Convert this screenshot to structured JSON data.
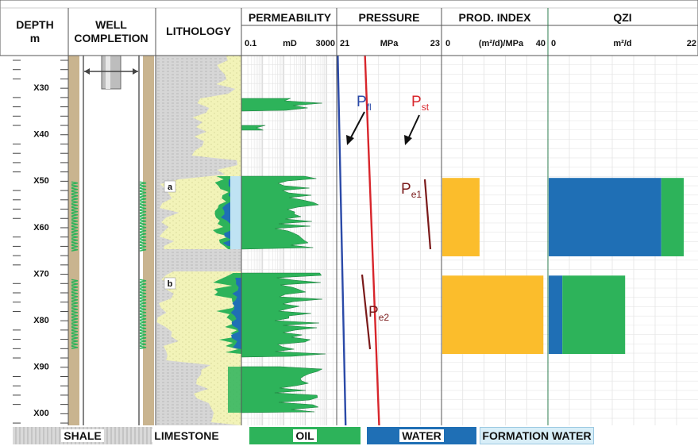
{
  "headers": {
    "depth": [
      "DEPTH",
      "m"
    ],
    "well": [
      "WELL",
      "COMPLETION"
    ],
    "lithology": "LITHOLOGY",
    "permeability": {
      "title": "PERMEABILITY",
      "min": "0.1",
      "unit": "mD",
      "max": "3000"
    },
    "pressure": {
      "title": "PRESSURE",
      "min": "21",
      "unit": "MPa",
      "max": "23"
    },
    "prod_index": {
      "title": "PROD. INDEX",
      "min": "0",
      "unit": "(m²/d)/MPa",
      "max": "40"
    },
    "qzi": {
      "title": "QZI",
      "min": "0",
      "unit": "m²/d",
      "max": "22"
    }
  },
  "depth_ticks": [
    "X30",
    "X40",
    "X50",
    "X60",
    "X70",
    "X80",
    "X90",
    "X00"
  ],
  "zones": [
    {
      "label": "a",
      "top": "X50",
      "base": "X66"
    },
    {
      "label": "b",
      "top": "X71",
      "base": "X87"
    }
  ],
  "pressure_labels": {
    "p_fl": {
      "main": "P",
      "sub": "fl"
    },
    "p_st": {
      "main": "P",
      "sub": "st"
    },
    "p_e1": {
      "main": "P",
      "sub": "e1"
    },
    "p_e2": {
      "main": "P",
      "sub": "e2"
    }
  },
  "colors": {
    "oil": "#2db35a",
    "water": "#1f6fb5",
    "formation_water": "#bfe3f3",
    "prod_index_bar": "#fbbd2c",
    "p_fl_line": "#2b4aa8",
    "p_st_line": "#d8262c",
    "p_e_line": "#7a1a1a",
    "casing": "#c9b48f",
    "shale": "#d3d3d3",
    "limestone": "#f2f3b8"
  },
  "chart_data": {
    "prod_index": {
      "type": "bar",
      "unit": "(m²/d)/MPa",
      "xlim": [
        0,
        40
      ],
      "bars": [
        {
          "zone": "a",
          "top": "X50",
          "base": "X66",
          "value": 14
        },
        {
          "zone": "b",
          "top": "X71",
          "base": "X87",
          "value": 38
        }
      ]
    },
    "qzi": {
      "type": "bar",
      "unit": "m²/d",
      "xlim": [
        0,
        22
      ],
      "bars": [
        {
          "zone": "a",
          "top": "X50",
          "base": "X66",
          "water": 16.5,
          "oil": 3.3
        },
        {
          "zone": "b",
          "top": "X71",
          "base": "X87",
          "water": 2.0,
          "oil": 9.2
        }
      ]
    },
    "pressure": {
      "type": "line",
      "unit": "MPa",
      "xlim": [
        21,
        23
      ],
      "series": [
        {
          "name": "Pfl",
          "top_value": 21.02,
          "base_value": 21.17
        },
        {
          "name": "Pst",
          "top_value": 21.54,
          "base_value": 21.81
        }
      ]
    }
  },
  "legend": [
    {
      "key": "shale",
      "label": "SHALE"
    },
    {
      "key": "limestone",
      "label": "LIMESTONE"
    },
    {
      "key": "oil",
      "label": "OIL"
    },
    {
      "key": "water",
      "label": "WATER"
    },
    {
      "key": "formation_water",
      "label": "FORMATION WATER"
    }
  ]
}
